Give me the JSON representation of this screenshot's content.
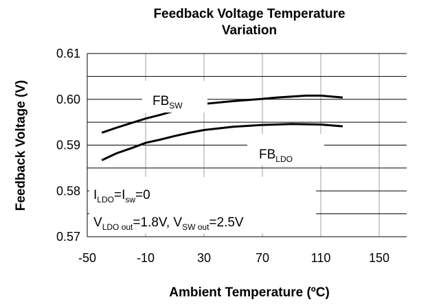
{
  "chart_data": {
    "type": "line",
    "title": [
      "Feedback Voltage Temperature",
      "Variation"
    ],
    "x_label": "Ambient Temperature  (ºC)",
    "y_label": "Feedback Voltage (V)",
    "xlim": [
      -50,
      150
    ],
    "xticks": [
      -50,
      -10,
      30,
      70,
      110,
      150
    ],
    "ylim": [
      0.57,
      0.61
    ],
    "yticks": [
      {
        "value": 0.57,
        "label": "0.57"
      },
      {
        "value": 0.58,
        "label": "0.58"
      },
      {
        "value": 0.59,
        "label": "0.59"
      },
      {
        "value": 0.6,
        "label": "0.60"
      },
      {
        "value": 0.61,
        "label": "0.61"
      }
    ],
    "minor_yticks": [
      0.575,
      0.585,
      0.595,
      0.605
    ],
    "grid": true,
    "series": [
      {
        "color": "#000000",
        "x": [
          -40,
          -30,
          -20,
          -10,
          0,
          10,
          20,
          30,
          50,
          70,
          80,
          90,
          100,
          110,
          125
        ],
        "values": [
          0.5927,
          0.5938,
          0.5948,
          0.5958,
          0.5966,
          0.5975,
          0.5983,
          0.599,
          0.5996,
          0.6001,
          0.6004,
          0.6006,
          0.6008,
          0.6008,
          0.6004
        ]
      },
      {
        "color": "#000000",
        "x": [
          -40,
          -30,
          -20,
          -10,
          0,
          10,
          20,
          30,
          50,
          70,
          90,
          110,
          125
        ],
        "values": [
          0.5867,
          0.5882,
          0.5893,
          0.5905,
          0.5912,
          0.592,
          0.5927,
          0.5933,
          0.594,
          0.5944,
          0.5946,
          0.5945,
          0.5941
        ]
      }
    ],
    "annotations": [
      [
        "FB",
        "SW"
      ],
      [
        "FB",
        "LDO"
      ],
      [
        "I",
        "LDO",
        "=I",
        "sw",
        "=0"
      ],
      [
        "V",
        "LDO out",
        "=1.8V, V",
        "SW out",
        "=2.5V"
      ]
    ]
  }
}
